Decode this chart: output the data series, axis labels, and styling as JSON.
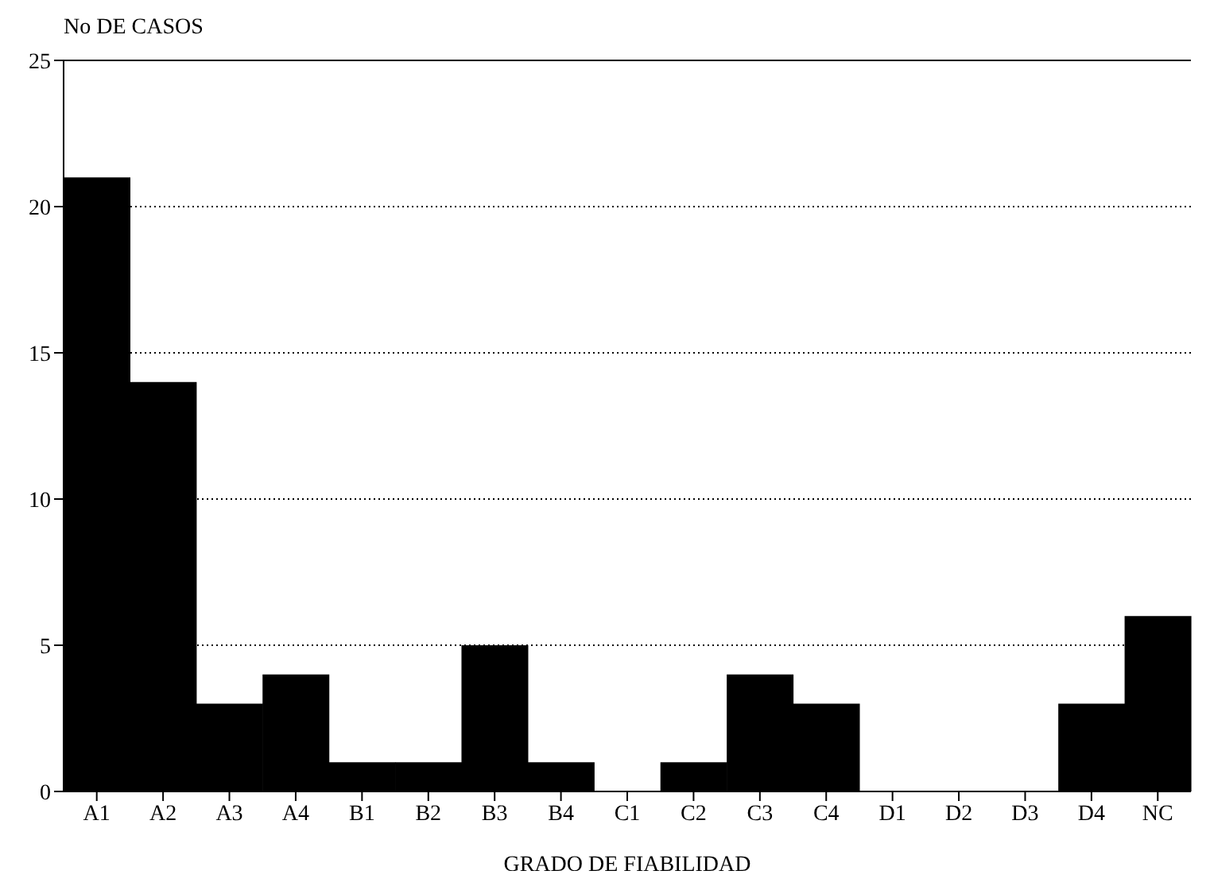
{
  "chart_data": {
    "type": "bar",
    "ylabel": "No DE CASOS",
    "xlabel": "GRADO DE FIABILIDAD",
    "categories": [
      "A1",
      "A2",
      "A3",
      "A4",
      "B1",
      "B2",
      "B3",
      "B4",
      "C1",
      "C2",
      "C3",
      "C4",
      "D1",
      "D2",
      "D3",
      "D4",
      "NC"
    ],
    "values": [
      21,
      14,
      3,
      4,
      1,
      1,
      5,
      1,
      0,
      1,
      4,
      3,
      0,
      0,
      0,
      3,
      6
    ],
    "color": "#000000",
    "ylim": [
      0,
      25
    ],
    "yticks": [
      0,
      5,
      10,
      15,
      20,
      25
    ],
    "grid": "y"
  }
}
